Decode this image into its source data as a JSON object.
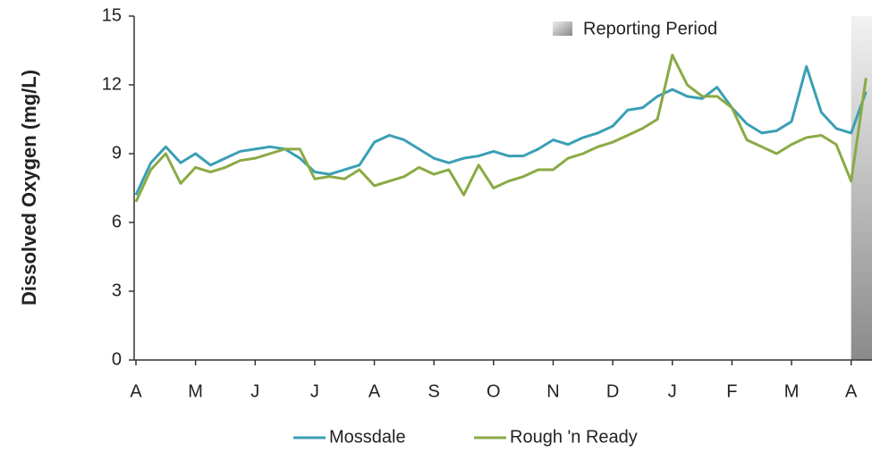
{
  "chart_data": {
    "type": "line",
    "y_label": "Dissolved Oxygen (mg/L)",
    "x": [
      0,
      0.25,
      0.5,
      0.75,
      1,
      1.25,
      1.5,
      1.75,
      2,
      2.25,
      2.5,
      2.75,
      3,
      3.25,
      3.5,
      3.75,
      4,
      4.25,
      4.5,
      4.75,
      5,
      5.25,
      5.5,
      5.75,
      6,
      6.25,
      6.5,
      6.75,
      7,
      7.25,
      7.5,
      7.75,
      8,
      8.25,
      8.5,
      8.75,
      9,
      9.25,
      9.5,
      9.75,
      10,
      10.25,
      10.5,
      10.75,
      11,
      11.25,
      11.5,
      11.75,
      12,
      12.25
    ],
    "xlim": [
      0,
      12.35
    ],
    "xticks": [
      {
        "value": 0,
        "label": "A"
      },
      {
        "value": 1,
        "label": "M"
      },
      {
        "value": 2,
        "label": "J"
      },
      {
        "value": 3,
        "label": "J"
      },
      {
        "value": 4,
        "label": "A"
      },
      {
        "value": 5,
        "label": "S"
      },
      {
        "value": 6,
        "label": "O"
      },
      {
        "value": 7,
        "label": "N"
      },
      {
        "value": 8,
        "label": "D"
      },
      {
        "value": 9,
        "label": "J"
      },
      {
        "value": 10,
        "label": "F"
      },
      {
        "value": 11,
        "label": "M"
      },
      {
        "value": 12,
        "label": "A"
      }
    ],
    "ylim": [
      0,
      15
    ],
    "yticks": [
      0,
      3,
      6,
      9,
      12,
      15
    ],
    "series": [
      {
        "name": "Mossdale",
        "color": "#3a9fb5",
        "values": [
          7.2,
          8.6,
          9.3,
          8.6,
          9.0,
          8.5,
          8.8,
          9.1,
          9.2,
          9.3,
          9.2,
          8.8,
          8.2,
          8.1,
          8.3,
          8.5,
          9.5,
          9.8,
          9.6,
          9.2,
          8.8,
          8.6,
          8.8,
          8.9,
          9.1,
          8.9,
          8.9,
          9.2,
          9.6,
          9.4,
          9.7,
          9.9,
          10.2,
          10.9,
          11.0,
          11.5,
          11.8,
          11.5,
          11.4,
          11.9,
          11.0,
          10.3,
          9.9,
          10.0,
          10.4,
          12.8,
          10.8,
          10.1,
          9.9,
          11.7
        ]
      },
      {
        "name": "Rough 'n Ready",
        "color": "#8aaa44",
        "values": [
          6.9,
          8.3,
          9.0,
          7.7,
          8.4,
          8.2,
          8.4,
          8.7,
          8.8,
          9.0,
          9.2,
          9.2,
          7.9,
          8.0,
          7.9,
          8.3,
          7.6,
          7.8,
          8.0,
          8.4,
          8.1,
          8.3,
          7.2,
          8.5,
          7.5,
          7.8,
          8.0,
          8.3,
          8.3,
          8.8,
          9.0,
          9.3,
          9.5,
          9.8,
          10.1,
          10.5,
          13.3,
          12.0,
          11.5,
          11.5,
          11.0,
          9.6,
          9.3,
          9.0,
          9.4,
          9.7,
          9.8,
          9.4,
          7.8,
          12.3
        ]
      }
    ],
    "reporting_period": {
      "label": "Reporting Period",
      "start": 12
    }
  }
}
